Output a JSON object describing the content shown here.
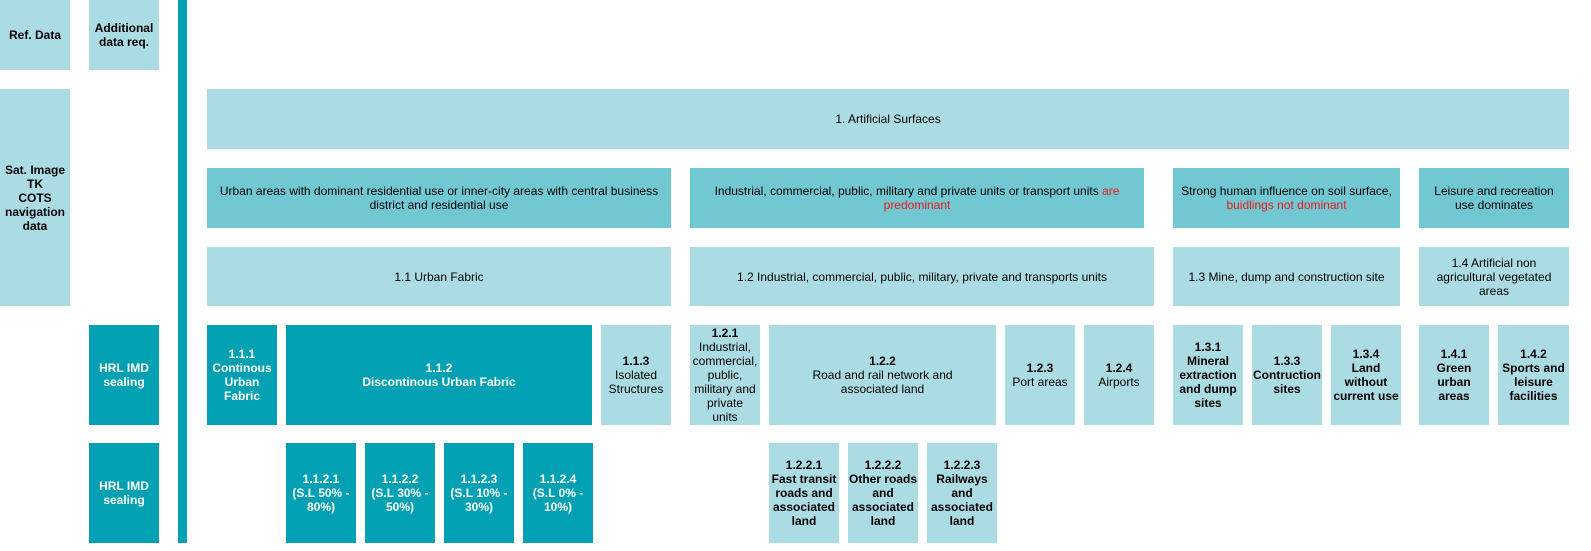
{
  "left_column": {
    "ref_data": "Ref. Data",
    "additional": "Additional data req.",
    "sat_image": "Sat. Image\nTK\nCOTS\nnavigation\ndata",
    "hrl_1": "HRL IMD sealing",
    "hrl_2": "HRL IMD sealing"
  },
  "level1": {
    "label": "1. Artificial Surfaces"
  },
  "descriptions": {
    "urban": "Urban areas with dominant residential use or inner-city areas with central business district and residential use",
    "industrial_a": "Industrial, commercial, public, military and private units or transport units ",
    "industrial_b": "are predominant",
    "mine_a": "Strong human influence on soil surface, ",
    "mine_b": "buidlings not dominant",
    "leisure": "Leisure and recreation use dominates"
  },
  "level2": {
    "c11": "1.1 Urban Fabric",
    "c12": "1.2 Industrial, commercial, public, military, private and transports units",
    "c13": "1.3 Mine, dump and construction site",
    "c14": "1.4 Artificial non agricultural vegetated areas"
  },
  "level3": {
    "c111_code": "1.1.1",
    "c111_name": "Continous\nUrban\nFabric",
    "c112_code": "1.1.2",
    "c112_name": "Discontinous Urban Fabric",
    "c113_code": "1.1.3",
    "c113_name": "Isolated\nStructures",
    "c121_code": "1.2.1",
    "c121_name": "Industrial,\ncommercial,\npublic,\nmilitary and\nprivate\nunits",
    "c122_code": "1.2.2",
    "c122_name": "Road and rail network and\nassociated land",
    "c123_code": "1.2.3",
    "c123_name": "Port areas",
    "c124_code": "1.2.4",
    "c124_name": "Airports",
    "c131_code": "1.3.1",
    "c131_name": "Mineral\nextraction\nand dump\nsites",
    "c133_code": "1.3.3",
    "c133_name": "Contruction\nsites",
    "c134_code": "1.3.4",
    "c134_name": "Land\nwithout\ncurrent use",
    "c141_code": "1.4.1",
    "c141_name": "Green\nurban\nareas",
    "c142_code": "1.4.2",
    "c142_name": "Sports and\nleisure\nfacilities"
  },
  "level4": {
    "c1121_code": "1.1.2.1",
    "c1121_name": "(S.L 50% -\n80%)",
    "c1122_code": "1.1.2.2",
    "c1122_name": "(S.L 30% -\n50%)",
    "c1123_code": "1.1.2.3",
    "c1123_name": "(S.L 10% -\n30%)",
    "c1124_code": "1.1.2.4",
    "c1124_name": "(S.L 0% -\n10%)",
    "c1221_code": "1.2.2.1",
    "c1221_name": "Fast transit\nroads and\nassociated\nland",
    "c1222_code": "1.2.2.2",
    "c1222_name": "Other roads\nand\nassociated\nland",
    "c1223_code": "1.2.2.3",
    "c1223_name": "Railways\nand\nassociated\nland"
  },
  "colors": {
    "light": "#acdce3",
    "mid": "#71c8d2",
    "dark": "#01a0b2",
    "highlight": "#ea1a1a"
  }
}
